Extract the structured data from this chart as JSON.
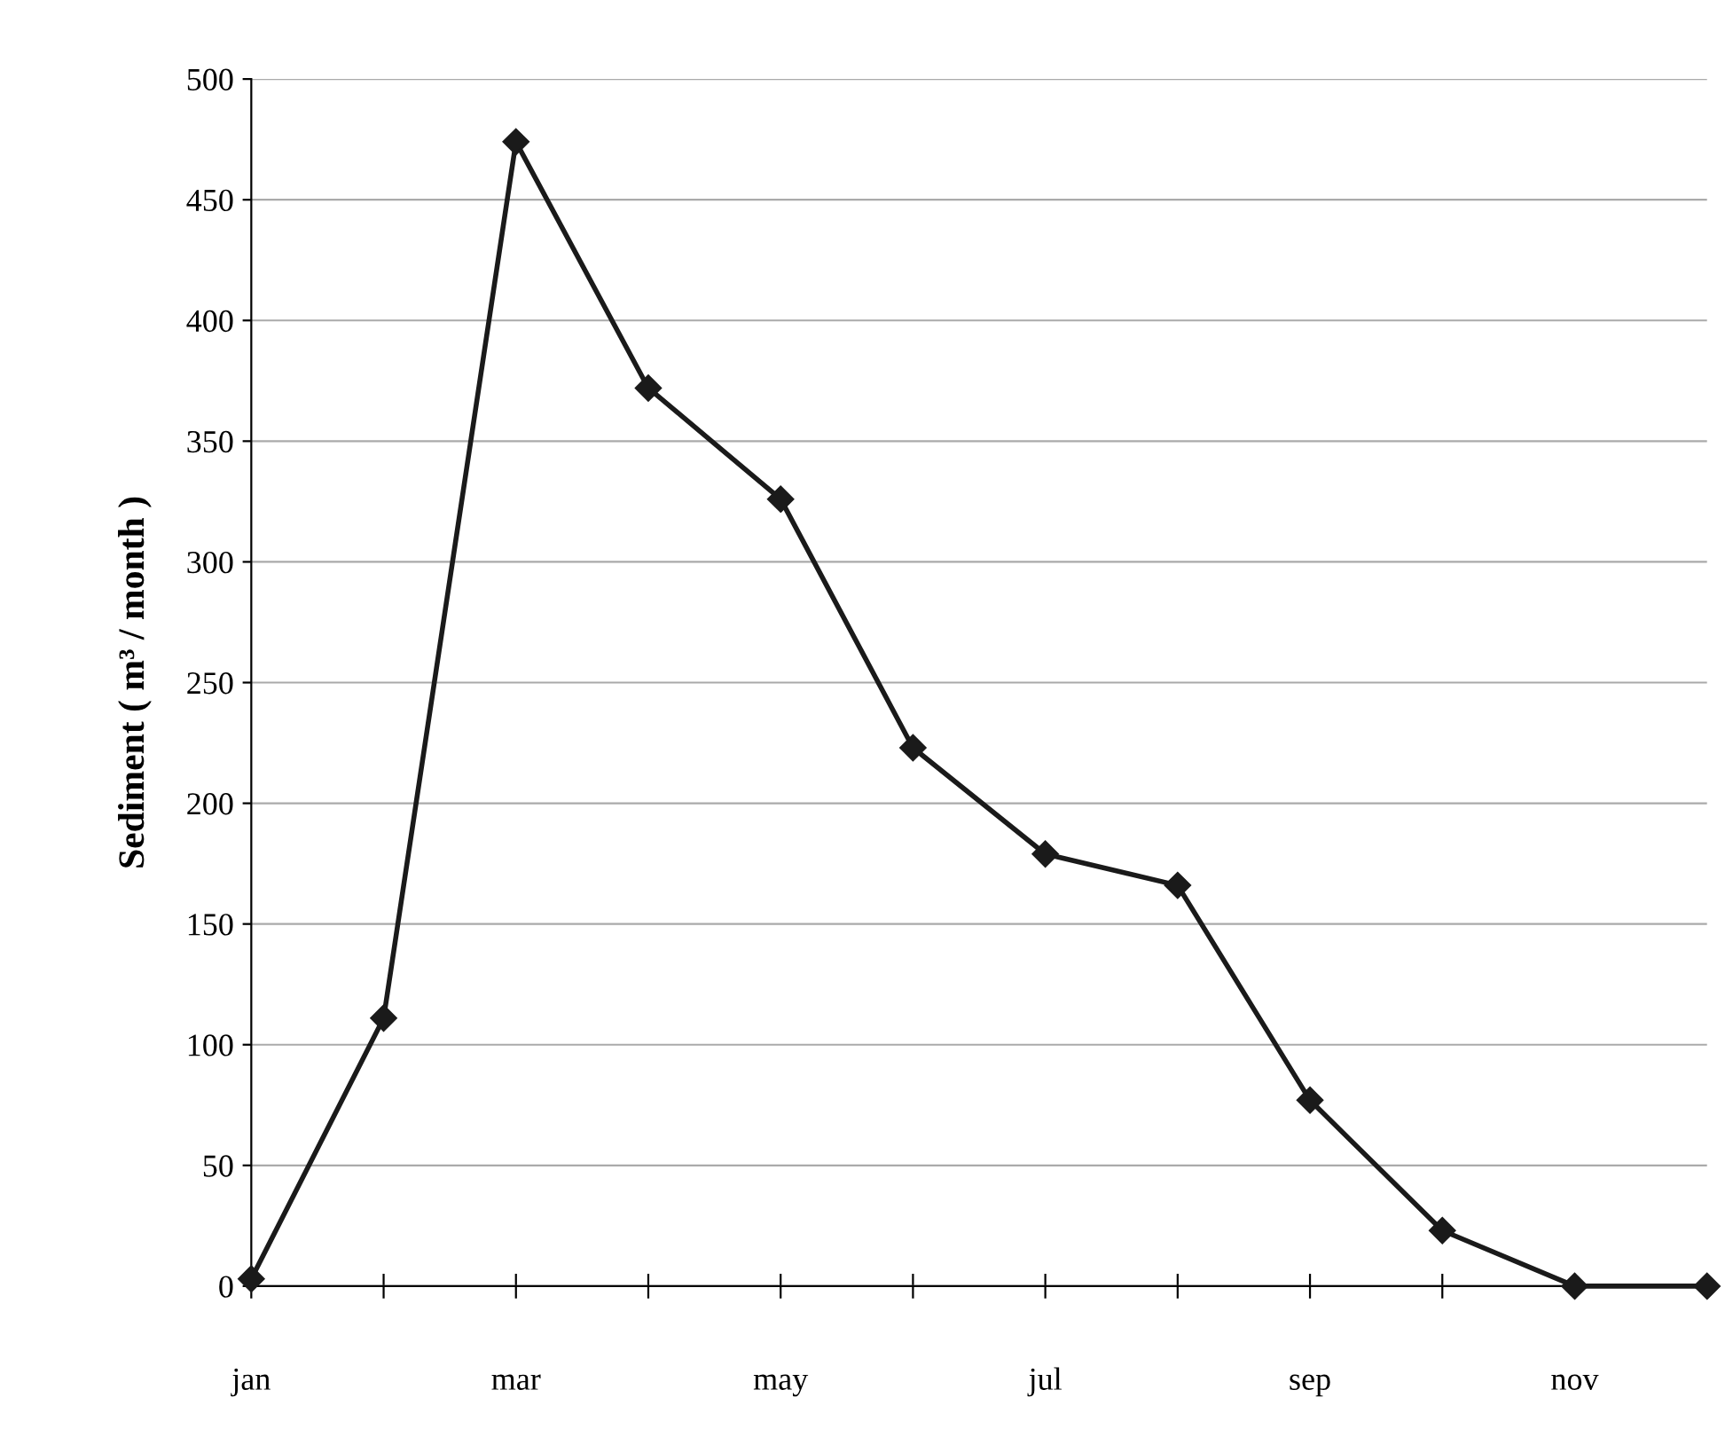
{
  "chart_data": {
    "type": "line",
    "ylabel": "Sediment ( m³ / month )",
    "categories": [
      "jan",
      null,
      "mar",
      null,
      "may",
      null,
      "jul",
      null,
      "sep",
      null,
      "nov",
      null
    ],
    "series": [
      {
        "color": "#1a1a1a",
        "values": [
          3,
          111,
          474,
          372,
          326,
          223,
          179,
          166,
          77,
          23,
          0,
          0
        ]
      }
    ],
    "ylim": [
      0,
      500
    ],
    "yticks": [
      0,
      50,
      100,
      150,
      200,
      250,
      300,
      350,
      400,
      450,
      500
    ],
    "grid": "y",
    "marker": "diamond",
    "line_style": "solid"
  }
}
